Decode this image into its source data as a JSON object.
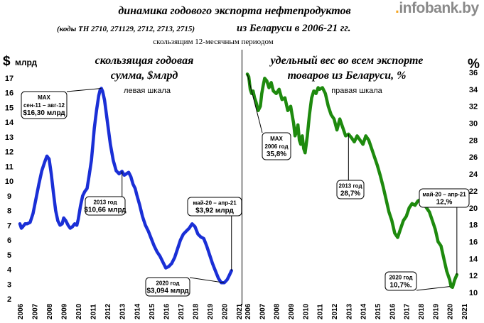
{
  "header": {
    "title_line1": "динамика годового экспорта нефтепродуктов",
    "title_line2_codes": "(коды ТН 2710, 271129, 2712, 2713, 2715)",
    "title_line2_rest": "из Беларуси в 2006-21 гг.",
    "title_line3": "скользящим 12-месячным периодом"
  },
  "brand": {
    "prefix": ".",
    "name": "infobank.by"
  },
  "chart_data": [
    {
      "type": "line",
      "title": "скользящая годовая сумма, $млрд",
      "title_line1": "скользящая годовая",
      "title_line2": "сумма, $млрд",
      "scale_note": "левая шкала",
      "ylabel": "$ млрд",
      "ylim": [
        2,
        17
      ],
      "yticks": [
        2,
        3,
        4,
        5,
        6,
        7,
        8,
        9,
        10,
        11,
        12,
        13,
        14,
        15,
        16,
        17
      ],
      "xlim": [
        2006,
        2021
      ],
      "xticks": [
        "2006",
        "2007",
        "2008",
        "2009",
        "2010",
        "2011",
        "2012",
        "2013",
        "2014",
        "2015",
        "2016",
        "2017",
        "2018",
        "2019",
        "2020",
        "2021"
      ],
      "color": "#1a2fd6",
      "series": [
        {
          "x": [
            2006.0,
            2006.1,
            2006.2,
            2006.35,
            2006.5,
            2006.7,
            2006.9,
            2007.1,
            2007.3,
            2007.5,
            2007.7,
            2007.85,
            2008.0,
            2008.15,
            2008.3,
            2008.45,
            2008.6,
            2008.75,
            2008.9,
            2009.0,
            2009.15,
            2009.3,
            2009.45,
            2009.6,
            2009.75,
            2009.9,
            2010.0,
            2010.15,
            2010.3,
            2010.45,
            2010.6,
            2010.75,
            2010.9,
            2011.0,
            2011.1,
            2011.25,
            2011.4,
            2011.5,
            2011.58,
            2011.67,
            2011.8,
            2012.0,
            2012.2,
            2012.4,
            2012.6,
            2012.8,
            2013.0,
            2013.15,
            2013.3,
            2013.45,
            2013.6,
            2013.75,
            2013.9,
            2014.0,
            2014.2,
            2014.4,
            2014.6,
            2014.8,
            2015.0,
            2015.2,
            2015.4,
            2015.6,
            2015.8,
            2016.0,
            2016.2,
            2016.4,
            2016.6,
            2016.8,
            2017.0,
            2017.2,
            2017.4,
            2017.6,
            2017.8,
            2018.0,
            2018.2,
            2018.4,
            2018.6,
            2018.8,
            2019.0,
            2019.2,
            2019.4,
            2019.6,
            2019.8,
            2020.0,
            2020.2,
            2020.35,
            2020.5
          ],
          "y": [
            7.1,
            6.8,
            6.9,
            7.1,
            7.1,
            7.2,
            7.8,
            8.8,
            9.8,
            10.7,
            11.3,
            11.7,
            11.5,
            10.5,
            9.2,
            8.0,
            7.3,
            7.0,
            7.1,
            7.5,
            7.3,
            7.0,
            6.8,
            6.9,
            7.1,
            7.0,
            7.4,
            8.3,
            9.0,
            9.3,
            9.5,
            10.4,
            11.4,
            12.5,
            13.6,
            14.8,
            15.8,
            16.2,
            16.3,
            16.1,
            15.5,
            14.0,
            12.5,
            11.4,
            10.7,
            10.5,
            10.66,
            10.4,
            10.5,
            10.6,
            10.3,
            9.8,
            9.5,
            9.1,
            8.4,
            7.6,
            7.0,
            6.6,
            6.1,
            5.6,
            5.2,
            4.9,
            4.5,
            4.1,
            4.2,
            4.4,
            4.8,
            5.4,
            6.0,
            6.4,
            6.6,
            6.8,
            7.1,
            6.9,
            6.4,
            6.2,
            6.1,
            5.6,
            5.0,
            4.4,
            3.9,
            3.4,
            3.1,
            3.094,
            3.3,
            3.6,
            3.92
          ]
        }
      ],
      "annotations": [
        {
          "lines": [
            "MAX",
            "сен-11 – авг-12",
            "$16,30 млрд"
          ]
        },
        {
          "lines": [
            "2013 год",
            "$10,66 млрд"
          ]
        },
        {
          "lines": [
            "май-20 – апр-21",
            "$3,92 млрд"
          ]
        },
        {
          "lines": [
            "2020 год",
            "$3,094 млрд"
          ]
        }
      ]
    },
    {
      "type": "line",
      "title": "удельный вес во всем экспорте товаров из Беларуси, %",
      "title_line1": "удельный вес во всем экспорте",
      "title_line2": "товаров из Беларуси, %",
      "scale_note": "правая шкала",
      "ylabel": "%",
      "ylim": [
        10,
        36
      ],
      "yticks": [
        10,
        12,
        14,
        16,
        18,
        20,
        22,
        24,
        26,
        28,
        30,
        32,
        34,
        36
      ],
      "xlim": [
        2006,
        2021
      ],
      "xticks": [
        "2006",
        "2007",
        "2008",
        "2009",
        "2010",
        "2011",
        "2012",
        "2013",
        "2014",
        "2015",
        "2016",
        "2017",
        "2018",
        "2019",
        "2020",
        "2021"
      ],
      "color": "#1e8a0e",
      "series": [
        {
          "x": [
            2006.0,
            2006.1,
            2006.2,
            2006.3,
            2006.4,
            2006.5,
            2006.6,
            2006.75,
            2006.9,
            2007.0,
            2007.1,
            2007.2,
            2007.35,
            2007.5,
            2007.65,
            2007.8,
            2008.0,
            2008.2,
            2008.4,
            2008.6,
            2008.8,
            2009.0,
            2009.1,
            2009.2,
            2009.3,
            2009.4,
            2009.5,
            2009.6,
            2009.7,
            2009.8,
            2009.9,
            2010.0,
            2010.15,
            2010.3,
            2010.45,
            2010.6,
            2010.75,
            2010.9,
            2011.0,
            2011.2,
            2011.4,
            2011.6,
            2011.8,
            2012.0,
            2012.2,
            2012.4,
            2012.6,
            2012.8,
            2013.0,
            2013.2,
            2013.4,
            2013.6,
            2013.8,
            2014.0,
            2014.2,
            2014.4,
            2014.6,
            2014.8,
            2015.0,
            2015.2,
            2015.4,
            2015.6,
            2015.8,
            2016.0,
            2016.2,
            2016.4,
            2016.6,
            2016.8,
            2017.0,
            2017.2,
            2017.4,
            2017.6,
            2017.8,
            2018.0,
            2018.2,
            2018.4,
            2018.6,
            2018.8,
            2019.0,
            2019.2,
            2019.4,
            2019.6,
            2019.8,
            2020.0,
            2020.1,
            2020.2,
            2020.35,
            2020.5
          ],
          "y": [
            35.8,
            35.5,
            34.0,
            33.5,
            33.8,
            33.0,
            32.5,
            31.5,
            32.0,
            33.5,
            34.5,
            35.3,
            35.0,
            34.2,
            34.8,
            33.8,
            33.5,
            34.0,
            32.8,
            33.0,
            31.5,
            32.0,
            31.0,
            30.0,
            28.5,
            29.0,
            29.8,
            28.0,
            27.5,
            28.5,
            27.0,
            26.5,
            28.5,
            31.0,
            33.0,
            33.8,
            33.5,
            34.2,
            34.0,
            34.2,
            33.5,
            32.0,
            31.0,
            30.5,
            29.2,
            30.5,
            29.5,
            28.5,
            28.7,
            28.3,
            27.8,
            28.5,
            28.0,
            27.5,
            28.5,
            28.0,
            27.0,
            26.0,
            25.0,
            23.8,
            22.5,
            21.0,
            19.5,
            18.5,
            17.0,
            16.5,
            17.5,
            18.5,
            19.0,
            20.0,
            20.5,
            20.3,
            20.8,
            21.0,
            20.5,
            20.0,
            19.5,
            18.5,
            17.5,
            16.0,
            15.5,
            14.0,
            12.5,
            11.5,
            10.7,
            10.6,
            11.5,
            12.1
          ]
        }
      ],
      "annotations": [
        {
          "lines": [
            "MAX",
            "2006 год",
            "35,8%"
          ]
        },
        {
          "lines": [
            "2013 год",
            "28,7%"
          ]
        },
        {
          "lines": [
            "май-20 – апр-21",
            "12,%"
          ]
        },
        {
          "lines": [
            "2020 год",
            "10,7%."
          ]
        }
      ]
    }
  ]
}
